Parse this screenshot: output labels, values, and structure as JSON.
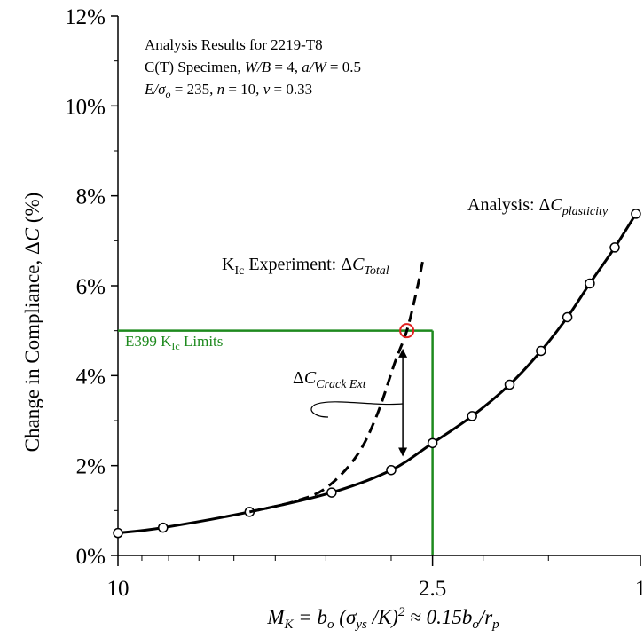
{
  "chart_data": {
    "type": "line",
    "x_scale": "log-reversed",
    "xlim": [
      10,
      1
    ],
    "ylim": [
      0,
      12
    ],
    "x_ticks": [
      {
        "value": 10,
        "label": "10"
      },
      {
        "value": 2.5,
        "label": "2.5"
      },
      {
        "value": 1,
        "label": "1"
      }
    ],
    "y_ticks": [
      {
        "value": 0,
        "label": "0%"
      },
      {
        "value": 2,
        "label": "2%"
      },
      {
        "value": 4,
        "label": "4%"
      },
      {
        "value": 6,
        "label": "6%"
      },
      {
        "value": 8,
        "label": "8%"
      },
      {
        "value": 10,
        "label": "10%"
      },
      {
        "value": 12,
        "label": "12%"
      }
    ],
    "x_minor_ticks": [
      9,
      8,
      7,
      6,
      5,
      4,
      3,
      2,
      1.5
    ],
    "xlabel": {
      "m": "M",
      "k": "K",
      "eq": " = b",
      "o1": "o",
      "open": " (σ",
      "ys": "ys",
      "mid": " /K)",
      "sq": "2",
      "approx": " ≈ 0.15b",
      "o2": "o",
      "slash": "/r",
      "p": "p"
    },
    "ylabel": {
      "main": "Change in Compliance, Δ",
      "var": "C",
      "unit": " (%)"
    },
    "grid": false,
    "series": [
      {
        "style": "solid",
        "color": "#000000",
        "points": [
          [
            10,
            0.5
          ],
          [
            8.2,
            0.62
          ],
          [
            5.6,
            0.97
          ],
          [
            3.9,
            1.4
          ],
          [
            3.0,
            1.9
          ],
          [
            2.5,
            2.5
          ],
          [
            2.1,
            3.1
          ],
          [
            1.78,
            3.8
          ],
          [
            1.55,
            4.55
          ],
          [
            1.38,
            5.3
          ],
          [
            1.25,
            6.05
          ],
          [
            1.12,
            6.85
          ],
          [
            1.02,
            7.6
          ]
        ],
        "markers": [
          [
            10,
            0.5
          ],
          [
            8.2,
            0.62
          ],
          [
            5.6,
            0.97
          ],
          [
            3.9,
            1.4
          ],
          [
            3.0,
            1.9
          ],
          [
            2.5,
            2.5
          ],
          [
            2.1,
            3.1
          ],
          [
            1.78,
            3.8
          ],
          [
            1.55,
            4.55
          ],
          [
            1.38,
            5.3
          ],
          [
            1.25,
            6.05
          ],
          [
            1.12,
            6.85
          ],
          [
            1.02,
            7.6
          ]
        ]
      },
      {
        "style": "dashed",
        "color": "#000000",
        "points": [
          [
            5.6,
            0.97
          ],
          [
            4.6,
            1.2
          ],
          [
            4.0,
            1.5
          ],
          [
            3.5,
            2.2
          ],
          [
            3.2,
            3.1
          ],
          [
            2.95,
            4.3
          ],
          [
            2.8,
            5.0
          ],
          [
            2.68,
            5.9
          ],
          [
            2.6,
            6.65
          ]
        ]
      }
    ],
    "limits": {
      "color": "#1e8a1e",
      "y": 5,
      "x": 2.5,
      "label": {
        "main": "E399 K",
        "sub": "Ic",
        "rest": " Limits"
      }
    },
    "highlight": {
      "x": 2.8,
      "y": 5.0,
      "color": "#e02020"
    },
    "arrow": {
      "x": 2.85,
      "y_from": 4.6,
      "y_to": 2.2
    },
    "annotations": {
      "box_line1": "Analysis Results for 2219-T8",
      "box_line2": {
        "a": "C(T) Specimen, ",
        "b": "W/B",
        "c": " = 4, ",
        "d": "a/W",
        "e": " = 0.5"
      },
      "box_line3": {
        "a": "E/σ",
        "b": "o",
        "c": " = 235, ",
        "d": "n",
        "e": " = 10, ",
        "f": "v",
        "g": " = 0.33"
      },
      "analysis": {
        "a": "Analysis: Δ",
        "b": "C",
        "c": "plasticity"
      },
      "experiment": {
        "a": "K",
        "b": "Ic",
        "c": " Experiment: Δ",
        "d": "C",
        "e": "Total"
      },
      "crack": {
        "a": "Δ",
        "b": "C",
        "c": "Crack Ext"
      }
    }
  }
}
